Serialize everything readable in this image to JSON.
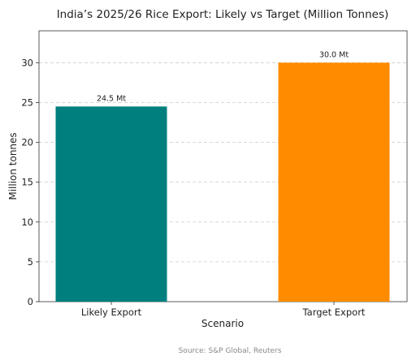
{
  "chart_data": {
    "type": "bar",
    "title": "India’s 2025/26 Rice Export: Likely vs Target (Million Tonnes)",
    "xlabel": "Scenario",
    "ylabel": "Million tonnes",
    "categories": [
      "Likely Export",
      "Target Export"
    ],
    "values": [
      24.5,
      30.0
    ],
    "data_labels": [
      "24.5 Mt",
      "30.0 Mt"
    ],
    "colors": [
      "#007f7f",
      "#ff8c00"
    ],
    "ylim": [
      0,
      34
    ],
    "yticks": [
      0,
      5,
      10,
      15,
      20,
      25,
      30
    ],
    "grid": "horizontal-dashed",
    "source": "Source: S&P Global, Reuters"
  }
}
